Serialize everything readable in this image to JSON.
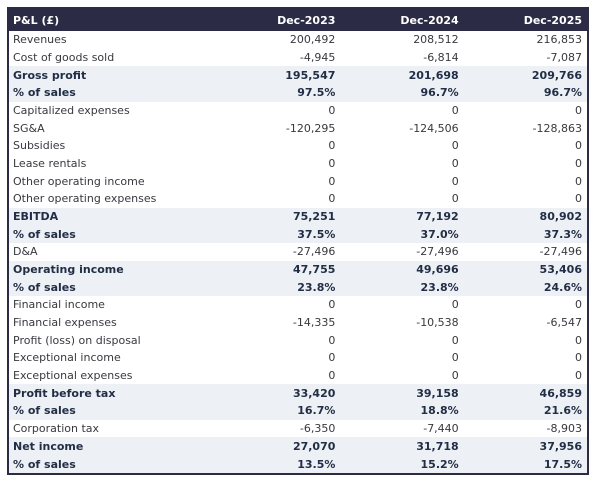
{
  "colors": {
    "header_bg": "#2b2b45",
    "header_text": "#ffffff",
    "outer_border": "#2b2b45",
    "highlight_row_bg": "#edf1f5",
    "highlight_row_text": "#222e45",
    "normal_row_text": "#38383f",
    "normal_row_bg": "#ffffff"
  },
  "chart_data": {
    "type": "table",
    "title": "P&L (£)",
    "corner_label": "P&L (£)",
    "columns": [
      "Dec-2023",
      "Dec-2024",
      "Dec-2025"
    ],
    "rows": [
      {
        "label": "Revenues",
        "values": [
          "200,492",
          "208,512",
          "216,853"
        ],
        "bold": false
      },
      {
        "label": "Cost of goods sold",
        "values": [
          "-4,945",
          "-6,814",
          "-7,087"
        ],
        "bold": false
      },
      {
        "label": "Gross profit",
        "values": [
          "195,547",
          "201,698",
          "209,766"
        ],
        "bold": true
      },
      {
        "label": "% of sales",
        "values": [
          "97.5%",
          "96.7%",
          "96.7%"
        ],
        "bold": true
      },
      {
        "label": "Capitalized expenses",
        "values": [
          "0",
          "0",
          "0"
        ],
        "bold": false
      },
      {
        "label": "SG&A",
        "values": [
          "-120,295",
          "-124,506",
          "-128,863"
        ],
        "bold": false
      },
      {
        "label": "Subsidies",
        "values": [
          "0",
          "0",
          "0"
        ],
        "bold": false
      },
      {
        "label": "Lease rentals",
        "values": [
          "0",
          "0",
          "0"
        ],
        "bold": false
      },
      {
        "label": "Other operating income",
        "values": [
          "0",
          "0",
          "0"
        ],
        "bold": false
      },
      {
        "label": "Other operating expenses",
        "values": [
          "0",
          "0",
          "0"
        ],
        "bold": false
      },
      {
        "label": "EBITDA",
        "values": [
          "75,251",
          "77,192",
          "80,902"
        ],
        "bold": true
      },
      {
        "label": "% of sales",
        "values": [
          "37.5%",
          "37.0%",
          "37.3%"
        ],
        "bold": true
      },
      {
        "label": "D&A",
        "values": [
          "-27,496",
          "-27,496",
          "-27,496"
        ],
        "bold": false
      },
      {
        "label": "Operating income",
        "values": [
          "47,755",
          "49,696",
          "53,406"
        ],
        "bold": true
      },
      {
        "label": "% of sales",
        "values": [
          "23.8%",
          "23.8%",
          "24.6%"
        ],
        "bold": true
      },
      {
        "label": "Financial income",
        "values": [
          "0",
          "0",
          "0"
        ],
        "bold": false
      },
      {
        "label": "Financial expenses",
        "values": [
          "-14,335",
          "-10,538",
          "-6,547"
        ],
        "bold": false
      },
      {
        "label": "Profit (loss) on disposal",
        "values": [
          "0",
          "0",
          "0"
        ],
        "bold": false
      },
      {
        "label": "Exceptional income",
        "values": [
          "0",
          "0",
          "0"
        ],
        "bold": false
      },
      {
        "label": "Exceptional expenses",
        "values": [
          "0",
          "0",
          "0"
        ],
        "bold": false
      },
      {
        "label": "Profit before tax",
        "values": [
          "33,420",
          "39,158",
          "46,859"
        ],
        "bold": true
      },
      {
        "label": "% of sales",
        "values": [
          "16.7%",
          "18.8%",
          "21.6%"
        ],
        "bold": true
      },
      {
        "label": "Corporation tax",
        "values": [
          "-6,350",
          "-7,440",
          "-8,903"
        ],
        "bold": false
      },
      {
        "label": "Net income",
        "values": [
          "27,070",
          "31,718",
          "37,956"
        ],
        "bold": true
      },
      {
        "label": "% of sales",
        "values": [
          "13.5%",
          "15.2%",
          "17.5%"
        ],
        "bold": true
      }
    ]
  }
}
